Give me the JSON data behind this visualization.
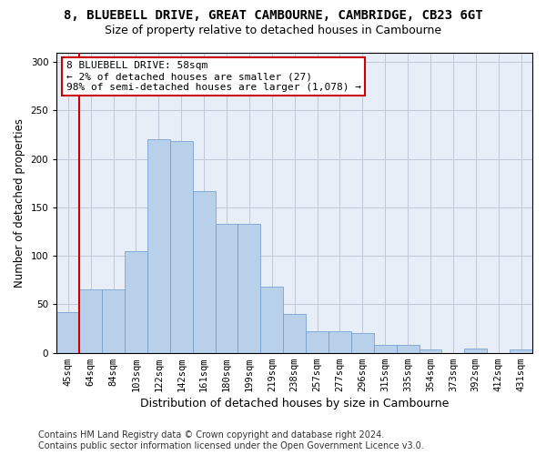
{
  "title": "8, BLUEBELL DRIVE, GREAT CAMBOURNE, CAMBRIDGE, CB23 6GT",
  "subtitle": "Size of property relative to detached houses in Cambourne",
  "xlabel": "Distribution of detached houses by size in Cambourne",
  "ylabel": "Number of detached properties",
  "categories": [
    "45sqm",
    "64sqm",
    "84sqm",
    "103sqm",
    "122sqm",
    "142sqm",
    "161sqm",
    "180sqm",
    "199sqm",
    "219sqm",
    "238sqm",
    "257sqm",
    "277sqm",
    "296sqm",
    "315sqm",
    "335sqm",
    "354sqm",
    "373sqm",
    "392sqm",
    "412sqm",
    "431sqm"
  ],
  "values": [
    42,
    65,
    65,
    105,
    220,
    218,
    167,
    133,
    133,
    68,
    40,
    22,
    22,
    20,
    8,
    8,
    3,
    0,
    4,
    0,
    3
  ],
  "bar_color": "#b8d0ea",
  "bar_edge_color": "#6699cc",
  "annotation_line1": "8 BLUEBELL DRIVE: 58sqm",
  "annotation_line2": "← 2% of detached houses are smaller (27)",
  "annotation_line3": "98% of semi-detached houses are larger (1,078) →",
  "annotation_box_color": "#ffffff",
  "annotation_box_edge_color": "#cc0000",
  "vline_color": "#cc0000",
  "ylim": [
    0,
    310
  ],
  "yticks": [
    0,
    50,
    100,
    150,
    200,
    250,
    300
  ],
  "bg_color": "#e8eef8",
  "footer": "Contains HM Land Registry data © Crown copyright and database right 2024.\nContains public sector information licensed under the Open Government Licence v3.0.",
  "title_fontsize": 10,
  "subtitle_fontsize": 9,
  "xlabel_fontsize": 9,
  "ylabel_fontsize": 8.5,
  "tick_fontsize": 7.5,
  "annotation_fontsize": 8,
  "footer_fontsize": 7
}
